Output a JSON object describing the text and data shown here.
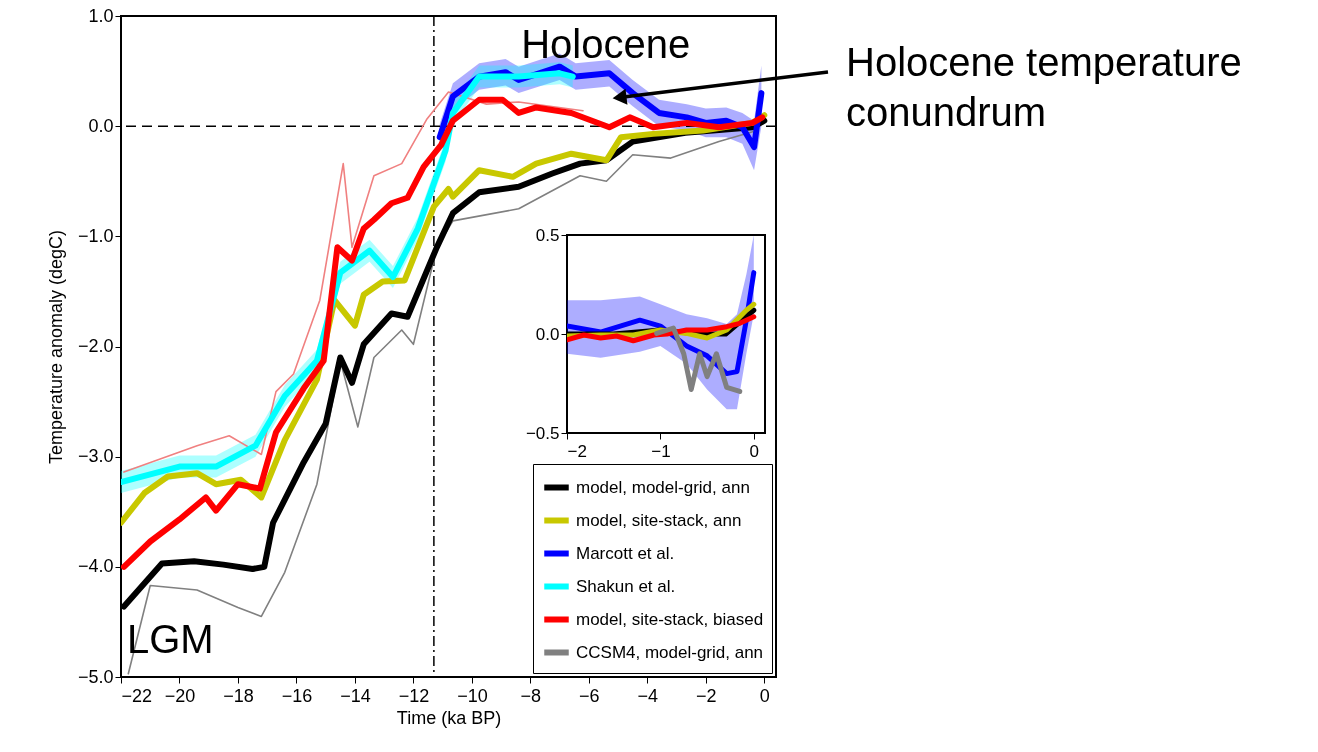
{
  "chart_data": [
    {
      "type": "line",
      "xlabel": "Time (ka BP)",
      "ylabel": "Temperature anomaly (degC)",
      "xlim": [
        -22,
        0.4
      ],
      "ylim": [
        -5,
        1
      ],
      "xticks": [
        {
          "value": -22,
          "label": "−22"
        },
        {
          "value": -20,
          "label": "−20"
        },
        {
          "value": -18,
          "label": "−18"
        },
        {
          "value": -16,
          "label": "−16"
        },
        {
          "value": -14,
          "label": "−14"
        },
        {
          "value": -12,
          "label": "−12"
        },
        {
          "value": -10,
          "label": "−10"
        },
        {
          "value": -8,
          "label": "−8"
        },
        {
          "value": -6,
          "label": "−6"
        },
        {
          "value": -4,
          "label": "−4"
        },
        {
          "value": -2,
          "label": "−2"
        },
        0
      ],
      "yticks": [
        {
          "value": -5,
          "label": "−5.0"
        },
        {
          "value": -4,
          "label": "−4.0"
        },
        {
          "value": -3,
          "label": "−3.0"
        },
        {
          "value": -2,
          "label": "−2.0"
        },
        {
          "value": -1,
          "label": "−1.0"
        },
        {
          "value": 0,
          "label": "0.0"
        },
        {
          "value": 1,
          "label": "1.0"
        }
      ],
      "series": [
        {
          "color": "#f08080",
          "x": [
            -21.9,
            -19.4,
            -18.3,
            -17.2,
            -16.7,
            -16.1,
            -15.2,
            -14.4,
            -14.1,
            -13.35,
            -12.4,
            -11.55,
            -10.8,
            -9.5,
            -8.4,
            -6.2
          ],
          "values": [
            -3.14,
            -2.9,
            -2.81,
            -2.98,
            -2.41,
            -2.25,
            -1.58,
            -0.34,
            -1.1,
            -0.45,
            -0.34,
            0.06,
            0.31,
            0.2,
            0.22,
            0.14
          ]
        },
        {
          "color": "#808080",
          "x": [
            -21.75,
            -21,
            -19.4,
            -18,
            -17.2,
            -16.4,
            -15.3,
            -14.5,
            -13.9,
            -13.35,
            -12.4,
            -12,
            -11.2,
            -10.65,
            -8.4,
            -6.3,
            -5.4,
            -4.5,
            -3.2,
            -1.55,
            -0.4
          ],
          "values": [
            -4.97,
            -4.17,
            -4.21,
            -4.37,
            -4.45,
            -4.05,
            -3.25,
            -2.13,
            -2.73,
            -2.1,
            -1.85,
            -1.98,
            -1.1,
            -0.86,
            -0.75,
            -0.45,
            -0.5,
            -0.26,
            -0.29,
            -0.14,
            -0.05
          ]
        },
        {
          "name": "model, model-grid, ann",
          "color": "#000000",
          "x": [
            -21.9,
            -20.6,
            -19.5,
            -18.5,
            -17.5,
            -17.1,
            -16.8,
            -15.75,
            -15,
            -14.5,
            -14.1,
            -13.7,
            -12.75,
            -12.2,
            -11.2,
            -10.65,
            -9.75,
            -8.4,
            -7.25,
            -6.3,
            -5.4,
            -4.5,
            -2.7,
            -0.4,
            0
          ],
          "values": [
            -4.36,
            -3.97,
            -3.95,
            -3.98,
            -4.02,
            -4.0,
            -3.6,
            -3.05,
            -2.7,
            -2.1,
            -2.33,
            -1.98,
            -1.7,
            -1.73,
            -1.1,
            -0.79,
            -0.6,
            -0.55,
            -0.43,
            -0.34,
            -0.31,
            -0.14,
            -0.06,
            -0.01,
            0.05
          ]
        },
        {
          "name": "model, site-stack, ann",
          "color": "#c8c800",
          "x": [
            -22,
            -21.2,
            -20.4,
            -19.4,
            -18.75,
            -17.9,
            -17.2,
            -16.4,
            -15.3,
            -14.7,
            -14,
            -13.7,
            -13.05,
            -12.3,
            -11.3,
            -10.8,
            -10.65,
            -9.75,
            -8.6,
            -7.8,
            -6.6,
            -5.4,
            -4.9,
            -3.8,
            -2.1,
            -0.4,
            0
          ],
          "values": [
            -3.6,
            -3.33,
            -3.18,
            -3.15,
            -3.25,
            -3.21,
            -3.37,
            -2.85,
            -2.3,
            -1.58,
            -1.81,
            -1.53,
            -1.41,
            -1.4,
            -0.73,
            -0.57,
            -0.64,
            -0.4,
            -0.46,
            -0.34,
            -0.25,
            -0.31,
            -0.1,
            -0.07,
            -0.04,
            0.03,
            0.1
          ]
        },
        {
          "name": "Marcott et al.",
          "color": "#0000ff",
          "x": [
            -11.1,
            -10.65,
            -9.75,
            -8.85,
            -8.4,
            -7.7,
            -7,
            -6.45,
            -5.3,
            -4.5,
            -3.6,
            -2.65,
            -2,
            -1.3,
            -0.75,
            -0.35,
            -0.1
          ],
          "values": [
            -0.1,
            0.27,
            0.45,
            0.49,
            0.42,
            0.48,
            0.54,
            0.45,
            0.48,
            0.3,
            0.12,
            0.08,
            0.03,
            0.05,
            -0.01,
            -0.19,
            0.3
          ],
          "lower": [
            -0.22,
            0.15,
            0.33,
            0.37,
            0.3,
            0.36,
            0.42,
            0.33,
            0.36,
            0.18,
            0.0,
            -0.04,
            -0.1,
            -0.1,
            -0.16,
            -0.4,
            0.0
          ],
          "upper": [
            0.02,
            0.39,
            0.57,
            0.61,
            0.54,
            0.6,
            0.66,
            0.57,
            0.6,
            0.42,
            0.24,
            0.2,
            0.16,
            0.17,
            0.12,
            0.05,
            0.55
          ]
        },
        {
          "name": "Shakun et al.",
          "color": "#00ffff",
          "x": [
            -22,
            -20,
            -18.75,
            -17.4,
            -16.4,
            -15.3,
            -14.5,
            -13.5,
            -12.7,
            -11.85,
            -10.9,
            -10.65,
            -9.75,
            -8.4,
            -7,
            -6.55
          ],
          "values": [
            -3.23,
            -3.09,
            -3.09,
            -2.9,
            -2.45,
            -2.13,
            -1.33,
            -1.13,
            -1.37,
            -0.93,
            -0.22,
            0.12,
            0.45,
            0.45,
            0.48,
            0.45
          ],
          "lower": [
            -3.33,
            -3.19,
            -3.19,
            -3.0,
            -2.55,
            -2.23,
            -1.43,
            -1.23,
            -1.47,
            -1.03,
            -0.32,
            0.02,
            0.35,
            0.35,
            0.38,
            0.35
          ],
          "upper": [
            -3.13,
            -2.99,
            -2.99,
            -2.8,
            -2.35,
            -2.03,
            -1.23,
            -1.03,
            -1.27,
            -0.83,
            -0.12,
            0.22,
            0.55,
            0.55,
            0.58,
            0.55
          ]
        },
        {
          "name": "model, site-stack, biased",
          "color": "#ff0000",
          "x": [
            -21.9,
            -21,
            -20,
            -19.1,
            -18.75,
            -18,
            -17.25,
            -16.7,
            -15.75,
            -15.07,
            -14.6,
            -14.1,
            -13.7,
            -13.35,
            -12.75,
            -12.2,
            -11.65,
            -11.05,
            -10.65,
            -9.75,
            -8.95,
            -8.4,
            -7.8,
            -6.6,
            -5.3,
            -4.6,
            -3.8,
            -2.65,
            -1.55,
            -0.4,
            -0.07
          ],
          "values": [
            -4.0,
            -3.77,
            -3.57,
            -3.37,
            -3.49,
            -3.25,
            -3.29,
            -2.78,
            -2.38,
            -2.13,
            -1.1,
            -1.22,
            -0.93,
            -0.85,
            -0.7,
            -0.65,
            -0.37,
            -0.17,
            0.05,
            0.24,
            0.24,
            0.12,
            0.17,
            0.12,
            -0.01,
            0.08,
            -0.01,
            0.03,
            -0.01,
            0.03,
            0.08
          ]
        }
      ],
      "ref_lines": [
        {
          "axis": "y",
          "value": 0,
          "line_style": "dashed"
        },
        {
          "axis": "x",
          "value": -11.3,
          "line_style": "dashdot"
        }
      ],
      "annotations": [
        "Holocene",
        "LGM",
        {
          "text": "Holocene  temperature conundrum",
          "x": -4.95,
          "y": 0.26
        }
      ],
      "legend": "bottom right",
      "grid": false
    },
    {
      "type": "line",
      "xlim": [
        -2,
        0.12
      ],
      "ylim": [
        -0.5,
        0.5
      ],
      "xticks": [
        {
          "value": -2,
          "label": "−2"
        },
        {
          "value": -1,
          "label": "−1"
        },
        0
      ],
      "yticks": [
        {
          "value": -0.5,
          "label": "−0.5"
        },
        {
          "value": 0,
          "label": "0.0"
        },
        {
          "value": 0.5,
          "label": "0.5"
        }
      ],
      "series": [
        {
          "name": "Marcott et al.",
          "color": "#0000ff",
          "x": [
            -2,
            -1.64,
            -1.22,
            -1,
            -0.72,
            -0.5,
            -0.29,
            -0.18,
            -0.08,
            0
          ],
          "values": [
            0.04,
            0.01,
            0.07,
            0.04,
            -0.06,
            -0.11,
            -0.2,
            -0.19,
            0.07,
            0.31
          ],
          "lower": [
            -0.1,
            -0.12,
            -0.09,
            -0.06,
            -0.15,
            -0.28,
            -0.38,
            -0.38,
            -0.1,
            0.1
          ],
          "upper": [
            0.17,
            0.17,
            0.19,
            0.15,
            0.1,
            0.08,
            0.05,
            0.1,
            0.3,
            0.5
          ]
        },
        {
          "name": "model, model-grid, ann",
          "color": "#000000",
          "x": [
            -2,
            -1.5,
            -1,
            -0.6,
            -0.3,
            -0.1,
            0
          ],
          "values": [
            0.0,
            0.0,
            0.02,
            0.0,
            0.0,
            0.08,
            0.12
          ]
        },
        {
          "name": "model, site-stack, ann",
          "color": "#c8c800",
          "x": [
            -2,
            -1.64,
            -1.29,
            -1,
            -0.72,
            -0.5,
            -0.29,
            -0.08,
            0
          ],
          "values": [
            -0.01,
            -0.005,
            -0.005,
            0.02,
            0.003,
            -0.02,
            0.02,
            0.12,
            0.15
          ]
        },
        {
          "name": "model, site-stack, biased",
          "color": "#ff0000",
          "x": [
            -2,
            -1.82,
            -1.64,
            -1.47,
            -1.29,
            -1.07,
            -0.93,
            -0.72,
            -0.5,
            -0.29,
            -0.15,
            0
          ],
          "values": [
            -0.03,
            -0.005,
            -0.02,
            -0.01,
            -0.034,
            -0.005,
            0,
            0.02,
            0.02,
            0.037,
            0.054,
            0.087
          ]
        },
        {
          "name": "CCSM4, model-grid, ann",
          "color": "#808080",
          "x": [
            -1.04,
            -0.86,
            -0.75,
            -0.67,
            -0.58,
            -0.5,
            -0.4,
            -0.29,
            -0.15
          ],
          "values": [
            0.003,
            0.03,
            -0.1,
            -0.28,
            -0.1,
            -0.215,
            -0.1,
            -0.27,
            -0.29
          ]
        }
      ],
      "legend": false,
      "grid": false
    }
  ]
}
